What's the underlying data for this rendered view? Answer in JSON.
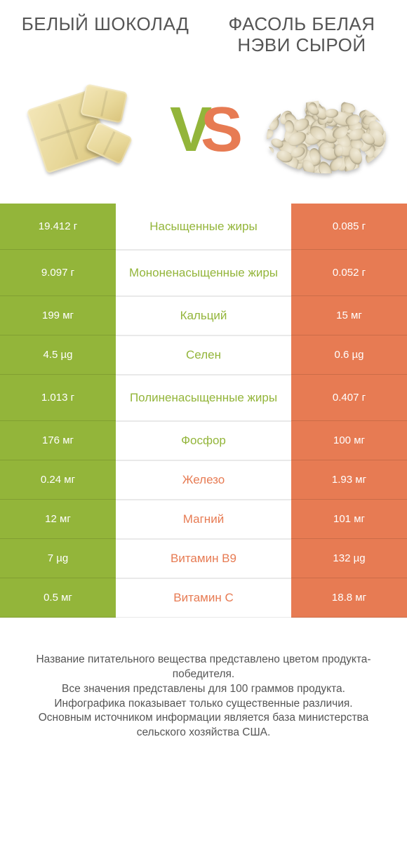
{
  "colors": {
    "green": "#93b53a",
    "orange": "#e77b53",
    "white": "#ffffff",
    "text": "#555555"
  },
  "left_title": "БЕЛЫЙ ШОКОЛАД",
  "right_title": "ФАСОЛЬ БЕЛАЯ НЭВИ СЫРОЙ",
  "vs_left_color": "#93b53a",
  "vs_right_color": "#e77b53",
  "rows": [
    {
      "left": "19.412 г",
      "label": "Насыщенные жиры",
      "right": "0.085 г",
      "winner": "left",
      "tall": true
    },
    {
      "left": "9.097 г",
      "label": "Мононенасыщенные жиры",
      "right": "0.052 г",
      "winner": "left",
      "tall": true
    },
    {
      "left": "199 мг",
      "label": "Кальций",
      "right": "15 мг",
      "winner": "left",
      "tall": false
    },
    {
      "left": "4.5 µg",
      "label": "Селен",
      "right": "0.6 µg",
      "winner": "left",
      "tall": false
    },
    {
      "left": "1.013 г",
      "label": "Полиненасыщенные жиры",
      "right": "0.407 г",
      "winner": "left",
      "tall": true
    },
    {
      "left": "176 мг",
      "label": "Фосфор",
      "right": "100 мг",
      "winner": "left",
      "tall": false
    },
    {
      "left": "0.24 мг",
      "label": "Железо",
      "right": "1.93 мг",
      "winner": "right",
      "tall": false
    },
    {
      "left": "12 мг",
      "label": "Магний",
      "right": "101 мг",
      "winner": "right",
      "tall": false
    },
    {
      "left": "7 µg",
      "label": "Витамин B9",
      "right": "132 µg",
      "winner": "right",
      "tall": false
    },
    {
      "left": "0.5 мг",
      "label": "Витамин C",
      "right": "18.8 мг",
      "winner": "right",
      "tall": false
    }
  ],
  "footnotes": [
    "Название питательного вещества представлено цветом продукта-победителя.",
    "Все значения представлены для 100 граммов продукта.",
    "Инфографика показывает только существенные различия.",
    "Основным источником информации является база министерства сельского хозяйства США."
  ]
}
